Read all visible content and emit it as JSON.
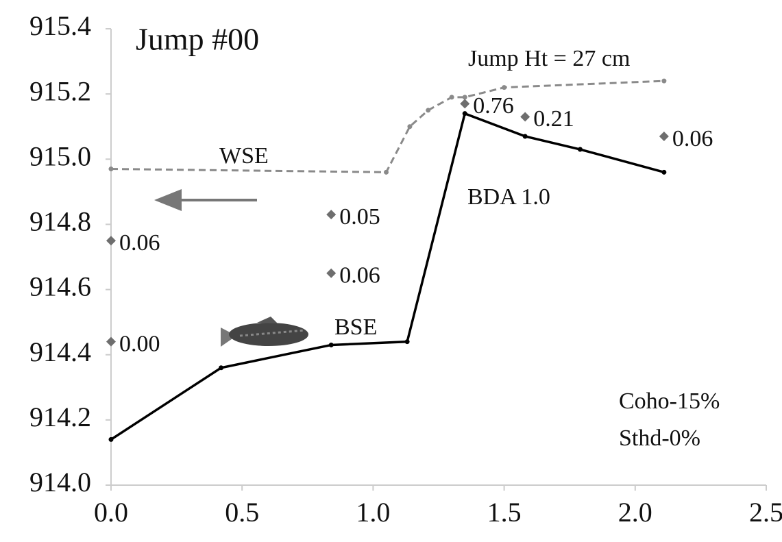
{
  "chart_data": {
    "type": "line",
    "title": "Jump #00",
    "annotations": [
      "Jump Ht = 27 cm",
      "BDA 1.0",
      "Coho-15%",
      "Sthd-0%"
    ],
    "xlim": [
      0,
      2.5
    ],
    "xticks": [
      {
        "value": 0,
        "label": "0.0"
      },
      0.5,
      {
        "value": 1,
        "label": "1.0"
      },
      1.5,
      {
        "value": 2,
        "label": "2.0"
      },
      2.5
    ],
    "ylim": [
      914,
      915.4
    ],
    "yticks": [
      {
        "value": 914,
        "label": "914.0"
      },
      914.2,
      914.4,
      914.6,
      914.8,
      {
        "value": 915,
        "label": "915.0"
      },
      915.2,
      915.4
    ],
    "series": [
      {
        "name": "WSE",
        "color": "#8a8a8a",
        "dashed": true,
        "x": [
          0,
          1.05,
          1.14,
          1.21,
          1.3,
          1.35,
          1.5,
          2.11
        ],
        "values": [
          914.97,
          914.96,
          915.1,
          915.15,
          915.19,
          915.19,
          915.22,
          915.24
        ]
      },
      {
        "name": "BSE",
        "color": "#000000",
        "dashed": false,
        "x": [
          0,
          0.42,
          0.84,
          1.13,
          1.35,
          1.58,
          1.79,
          2.11
        ],
        "values": [
          914.14,
          914.36,
          914.43,
          914.44,
          915.14,
          915.07,
          915.03,
          914.96
        ]
      }
    ],
    "points": {
      "color": "#6e6e6e",
      "x": [
        0,
        0,
        0.84,
        0.84,
        1.35,
        1.58,
        2.11
      ],
      "values": [
        914.75,
        914.44,
        914.83,
        914.65,
        915.17,
        915.13,
        915.07
      ],
      "labels": [
        "0.06",
        "0.00",
        "0.05",
        "0.06",
        "0.76",
        "0.21",
        "0.06"
      ]
    }
  }
}
